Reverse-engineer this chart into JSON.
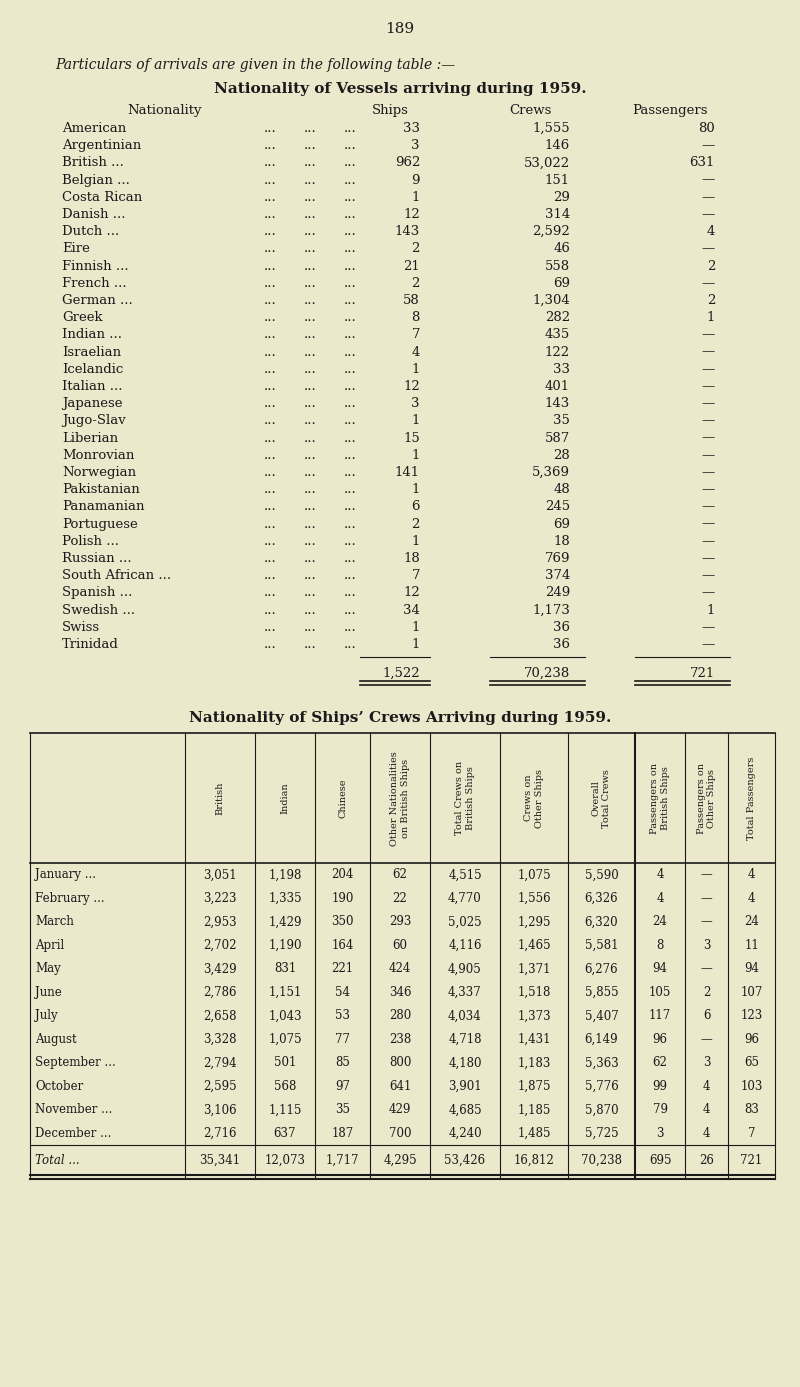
{
  "bg_color": "#ece8cc",
  "text_color": "#1a1a1a",
  "page_number": "189",
  "intro_text": "Particulars of arrivals are given in the following table :—",
  "table1_title": "Nationality of Vessels arriving during 1959.",
  "table1_rows": [
    [
      "American",
      "...",
      "...",
      "...",
      "33",
      "1,555",
      "80"
    ],
    [
      "Argentinian",
      "...",
      "...",
      "...",
      "3",
      "146",
      "—"
    ],
    [
      "British ...",
      "...",
      "...",
      "...",
      "962",
      "53,022",
      "631"
    ],
    [
      "Belgian ...",
      "...",
      "...",
      "...",
      "9",
      "151",
      "—"
    ],
    [
      "Costa Rican",
      "...",
      "...",
      "...",
      "1",
      "29",
      "—"
    ],
    [
      "Danish ...",
      "...",
      "...",
      "...",
      "12",
      "314",
      "—"
    ],
    [
      "Dutch ...",
      "...",
      "...",
      "...",
      "143",
      "2,592",
      "4"
    ],
    [
      "Eire",
      "...",
      "...",
      "...",
      "2",
      "46",
      "—"
    ],
    [
      "Finnish ...",
      "...",
      "...",
      "...",
      "21",
      "558",
      "2"
    ],
    [
      "French ...",
      "...",
      "...",
      "...",
      "2",
      "69",
      "—"
    ],
    [
      "German ...",
      "...",
      "...",
      "...",
      "58",
      "1,304",
      "2"
    ],
    [
      "Greek",
      "...",
      "...",
      "...",
      "8",
      "282",
      "1"
    ],
    [
      "Indian ...",
      "...",
      "...",
      "...",
      "7",
      "435",
      "—"
    ],
    [
      "Israelian",
      "...",
      "...",
      "...",
      "4",
      "122",
      "—"
    ],
    [
      "Icelandic",
      "...",
      "...",
      "...",
      "1",
      "33",
      "—"
    ],
    [
      "Italian ...",
      "...",
      "...",
      "...",
      "12",
      "401",
      "—"
    ],
    [
      "Japanese",
      "...",
      "...",
      "...",
      "3",
      "143",
      "—"
    ],
    [
      "Jugo-Slav",
      "...",
      "...",
      "...",
      "1",
      "35",
      "—"
    ],
    [
      "Liberian",
      "...",
      "...",
      "...",
      "15",
      "587",
      "—"
    ],
    [
      "Monrovian",
      "...",
      "...",
      "...",
      "1",
      "28",
      "—"
    ],
    [
      "Norwegian",
      "...",
      "...",
      "...",
      "141",
      "5,369",
      "—"
    ],
    [
      "Pakistanian",
      "...",
      "...",
      "...",
      "1",
      "48",
      "—"
    ],
    [
      "Panamanian",
      "...",
      "...",
      "...",
      "6",
      "245",
      "—"
    ],
    [
      "Portuguese",
      "...",
      "...",
      "...",
      "2",
      "69",
      "—"
    ],
    [
      "Polish ...",
      "...",
      "...",
      "...",
      "1",
      "18",
      "—"
    ],
    [
      "Russian ...",
      "...",
      "...",
      "...",
      "18",
      "769",
      "—"
    ],
    [
      "South African ...",
      "...",
      "...",
      "...",
      "7",
      "374",
      "—"
    ],
    [
      "Spanish ...",
      "...",
      "...",
      "...",
      "12",
      "249",
      "—"
    ],
    [
      "Swedish ...",
      "...",
      "...",
      "...",
      "34",
      "1,173",
      "1"
    ],
    [
      "Swiss",
      "...",
      "...",
      "...",
      "1",
      "36",
      "—"
    ],
    [
      "Trinidad",
      "...",
      "...",
      "...",
      "1",
      "36",
      "—"
    ]
  ],
  "table1_totals": [
    "1,522",
    "70,238",
    "721"
  ],
  "table2_title": "Nationality of Ships’ Crews Arriving during 1959.",
  "table2_col_headers": [
    "British",
    "Indian",
    "Chinese",
    "Other Nationalities\non British Ships",
    "Total Crews on\nBritish Ships",
    "Crews on\nOther Ships",
    "Overall\nTotal Crews",
    "Passengers on\nBritish Ships",
    "Passengers on\nOther Ships",
    "Total Passengers"
  ],
  "table2_rows": [
    [
      "January ...",
      "3,051",
      "1,198",
      "204",
      "62",
      "4,515",
      "1,075",
      "5,590",
      "4",
      "—",
      "4"
    ],
    [
      "February ...",
      "3,223",
      "1,335",
      "190",
      "22",
      "4,770",
      "1,556",
      "6,326",
      "4",
      "—",
      "4"
    ],
    [
      "March",
      "2,953",
      "1,429",
      "350",
      "293",
      "5,025",
      "1,295",
      "6,320",
      "24",
      "—",
      "24"
    ],
    [
      "April",
      "2,702",
      "1,190",
      "164",
      "60",
      "4,116",
      "1,465",
      "5,581",
      "8",
      "3",
      "11"
    ],
    [
      "May",
      "3,429",
      "831",
      "221",
      "424",
      "4,905",
      "1,371",
      "6,276",
      "94",
      "—",
      "94"
    ],
    [
      "June",
      "2,786",
      "1,151",
      "54",
      "346",
      "4,337",
      "1,518",
      "5,855",
      "105",
      "2",
      "107"
    ],
    [
      "July",
      "2,658",
      "1,043",
      "53",
      "280",
      "4,034",
      "1,373",
      "5,407",
      "117",
      "6",
      "123"
    ],
    [
      "August",
      "3,328",
      "1,075",
      "77",
      "238",
      "4,718",
      "1,431",
      "6,149",
      "96",
      "—",
      "96"
    ],
    [
      "September ...",
      "2,794",
      "501",
      "85",
      "800",
      "4,180",
      "1,183",
      "5,363",
      "62",
      "3",
      "65"
    ],
    [
      "October",
      "2,595",
      "568",
      "97",
      "641",
      "3,901",
      "1,875",
      "5,776",
      "99",
      "4",
      "103"
    ],
    [
      "November ...",
      "3,106",
      "1,115",
      "35",
      "429",
      "4,685",
      "1,185",
      "5,870",
      "79",
      "4",
      "83"
    ],
    [
      "December ...",
      "2,716",
      "637",
      "187",
      "700",
      "4,240",
      "1,485",
      "5,725",
      "3",
      "4",
      "7"
    ]
  ],
  "table2_totals": [
    "35,341",
    "12,073",
    "1,717",
    "4,295",
    "53,426",
    "16,812",
    "70,238",
    "695",
    "26",
    "721"
  ]
}
